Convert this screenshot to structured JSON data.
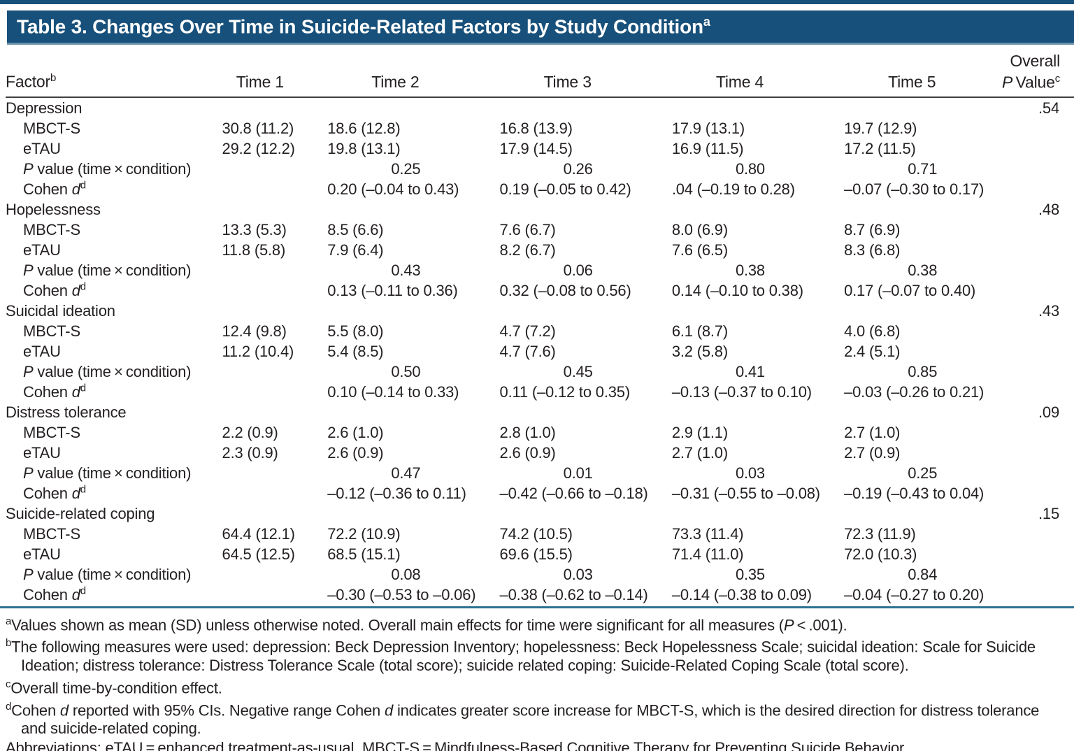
{
  "title": {
    "html": "Table 3. Changes Over Time in Suicide-Related Factors by Study Condition<sup>a</sup>"
  },
  "colors": {
    "c-bar": "#17507a",
    "c-bar-edge": "#6e93ac",
    "c-text": "#231f20",
    "c-rule-dark": "#3f3f3f",
    "c-rule-teal": "#2d7195"
  },
  "columns": {
    "factor_html": "Factor<sup>b</sup>",
    "times": [
      "Time 1",
      "Time 2",
      "Time 3",
      "Time 4",
      "Time 5"
    ],
    "overall_html": "Overall<br><i>P</i>&#8201;Value<sup>c</sup>"
  },
  "table": {
    "groups": [
      {
        "name": "Depression",
        "overall_p": ".54",
        "rows": [
          {
            "label_html": "MBCT-S",
            "type": "mean",
            "values": [
              "30.8 (11.2)",
              "18.6 (12.8)",
              "16.8 (13.9)",
              "17.9 (13.1)",
              "19.7 (12.9)"
            ]
          },
          {
            "label_html": "eTAU",
            "type": "mean",
            "values": [
              "29.2 (12.2)",
              "19.8 (13.1)",
              "17.9 (14.5)",
              "16.9 (11.5)",
              "17.2 (11.5)"
            ]
          },
          {
            "label_html": "<i>P</i> value (time&#8201;×&#8201;condition)",
            "type": "p",
            "values": [
              "",
              "0.25",
              "0.26",
              "0.80",
              "0.71"
            ]
          },
          {
            "label_html": "Cohen <i>d</i><sup>d</sup>",
            "type": "mean",
            "values": [
              "",
              "0.20 (–0.04 to 0.43)",
              "0.19 (–0.05 to 0.42)",
              ".04 (–0.19 to 0.28)",
              "–0.07 (–0.30 to 0.17)"
            ]
          }
        ]
      },
      {
        "name": "Hopelessness",
        "overall_p": ".48",
        "rows": [
          {
            "label_html": "MBCT-S",
            "type": "mean",
            "values": [
              "13.3 (5.3)",
              "8.5 (6.6)",
              "7.6 (6.7)",
              "8.0 (6.9)",
              "8.7 (6.9)"
            ]
          },
          {
            "label_html": "eTAU",
            "type": "mean",
            "values": [
              "11.8 (5.8)",
              "7.9 (6.4)",
              "8.2 (6.7)",
              "7.6 (6.5)",
              "8.3 (6.8)"
            ]
          },
          {
            "label_html": "<i>P</i> value (time&#8201;×&#8201;condition)",
            "type": "p",
            "values": [
              "",
              "0.43",
              "0.06",
              "0.38",
              "0.38"
            ]
          },
          {
            "label_html": "Cohen <i>d</i><sup>d</sup>",
            "type": "mean",
            "values": [
              "",
              "0.13 (–0.11 to 0.36)",
              "0.32 (–0.08 to 0.56)",
              "0.14 (–0.10 to 0.38)",
              "0.17 (–0.07 to 0.40)"
            ]
          }
        ]
      },
      {
        "name": "Suicidal ideation",
        "overall_p": ".43",
        "rows": [
          {
            "label_html": "MBCT-S",
            "type": "mean",
            "values": [
              "12.4 (9.8)",
              "5.5 (8.0)",
              "4.7 (7.2)",
              "6.1 (8.7)",
              "4.0 (6.8)"
            ]
          },
          {
            "label_html": "eTAU",
            "type": "mean",
            "values": [
              "11.2 (10.4)",
              "5.4 (8.5)",
              "4.7 (7.6)",
              "3.2 (5.8)",
              "2.4 (5.1)"
            ]
          },
          {
            "label_html": "<i>P</i> value (time&#8201;×&#8201;condition)",
            "type": "p",
            "values": [
              "",
              "0.50",
              "0.45",
              "0.41",
              "0.85"
            ]
          },
          {
            "label_html": "Cohen <i>d</i><sup>d</sup>",
            "type": "mean",
            "values": [
              "",
              "0.10 (–0.14 to 0.33)",
              "0.11 (–0.12 to 0.35)",
              "–0.13 (–0.37 to 0.10)",
              "–0.03 (–0.26 to 0.21)"
            ]
          }
        ]
      },
      {
        "name": "Distress tolerance",
        "overall_p": ".09",
        "rows": [
          {
            "label_html": "MBCT-S",
            "type": "mean",
            "values": [
              "2.2 (0.9)",
              "2.6 (1.0)",
              "2.8 (1.0)",
              "2.9 (1.1)",
              "2.7 (1.0)"
            ]
          },
          {
            "label_html": "eTAU",
            "type": "mean",
            "values": [
              "2.3 (0.9)",
              "2.6 (0.9)",
              "2.6 (0.9)",
              "2.7 (1.0)",
              "2.7 (0.9)"
            ]
          },
          {
            "label_html": "<i>P</i> value (time&#8201;×&#8201;condition)",
            "type": "p",
            "values": [
              "",
              "0.47",
              "0.01",
              "0.03",
              "0.25"
            ]
          },
          {
            "label_html": "Cohen <i>d</i><sup>d</sup>",
            "type": "mean",
            "values": [
              "",
              "–0.12 (–0.36 to 0.11)",
              "–0.42 (–0.66 to –0.18)",
              "–0.31 (–0.55 to –0.08)",
              "–0.19 (–0.43 to 0.04)"
            ]
          }
        ]
      },
      {
        "name": "Suicide-related coping",
        "overall_p": ".15",
        "rows": [
          {
            "label_html": "MBCT-S",
            "type": "mean",
            "values": [
              "64.4 (12.1)",
              "72.2 (10.9)",
              "74.2 (10.5)",
              "73.3 (11.4)",
              "72.3 (11.9)"
            ]
          },
          {
            "label_html": "eTAU",
            "type": "mean",
            "values": [
              "64.5 (12.5)",
              "68.5 (15.1)",
              "69.6 (15.5)",
              "71.4 (11.0)",
              "72.0 (10.3)"
            ]
          },
          {
            "label_html": "<i>P</i> value (time&#8201;×&#8201;condition)",
            "type": "p",
            "values": [
              "",
              "0.08",
              "0.03",
              "0.35",
              "0.84"
            ]
          },
          {
            "label_html": "Cohen <i>d</i><sup>d</sup>",
            "type": "mean",
            "values": [
              "",
              "–0.30 (–0.53 to –0.06)",
              "–0.38 (–0.62 to –0.14)",
              "–0.14 (–0.38 to 0.09)",
              "–0.04 (–0.27 to 0.20)"
            ]
          }
        ]
      }
    ]
  },
  "footnotes": [
    {
      "sup": "a",
      "html": "Values shown as mean (SD) unless otherwise noted. Overall main effects for time were significant for all measures (<i>P</i>&#8201;&lt;&#8201;.001)."
    },
    {
      "sup": "b",
      "html": "The following measures were used: depression: Beck Depression Inventory; hopelessness: Beck Hopelessness Scale; suicidal ideation: Scale for Suicide Ideation; distress tolerance: Distress Tolerance Scale (total score); suicide related coping: Suicide-Related Coping Scale (total score)."
    },
    {
      "sup": "c",
      "html": "Overall time-by-condition effect."
    },
    {
      "sup": "d",
      "html": "Cohen <i>d</i> reported with 95% CIs. Negative range Cohen <i>d</i> indicates greater score increase for MBCT-S, which is the desired direction for distress tolerance and suicide-related coping."
    }
  ],
  "abbreviations_html": "Abbreviations: eTAU&#8201;=&#8201;enhanced treatment-as-usual, MBCT-S&#8201;=&#8201;Mindfulness-Based Cognitive Therapy for Preventing Suicide Behavior."
}
